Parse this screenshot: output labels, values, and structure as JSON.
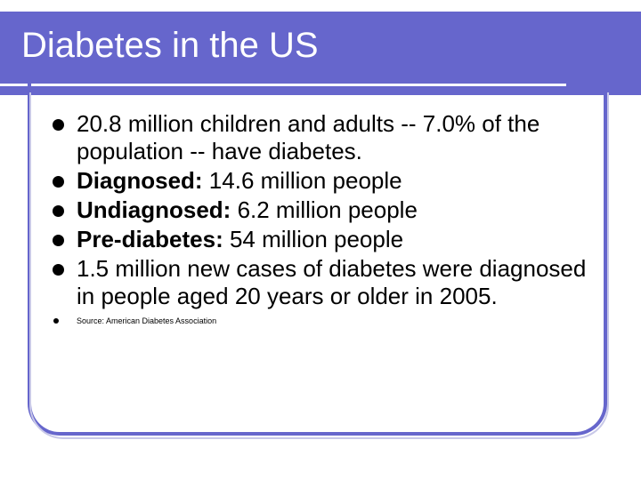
{
  "slide": {
    "title": "Diabetes in the US",
    "bullets": [
      {
        "label": "",
        "text": "20.8 million children and adults -- 7.0% of the population -- have diabetes."
      },
      {
        "label": "Diagnosed:",
        "text": " 14.6 million people"
      },
      {
        "label": "Undiagnosed:",
        "text": " 6.2 million people"
      },
      {
        "label": "Pre-diabetes:",
        "text": " 54 million people"
      },
      {
        "label": "",
        "text": "1.5 million new cases of diabetes were diagnosed in people aged 20 years or older in 2005."
      }
    ],
    "source": "Source: American Diabetes Association"
  },
  "colors": {
    "title_bar": "#6666cc",
    "title_text": "#ffffff",
    "body_text": "#000000"
  }
}
